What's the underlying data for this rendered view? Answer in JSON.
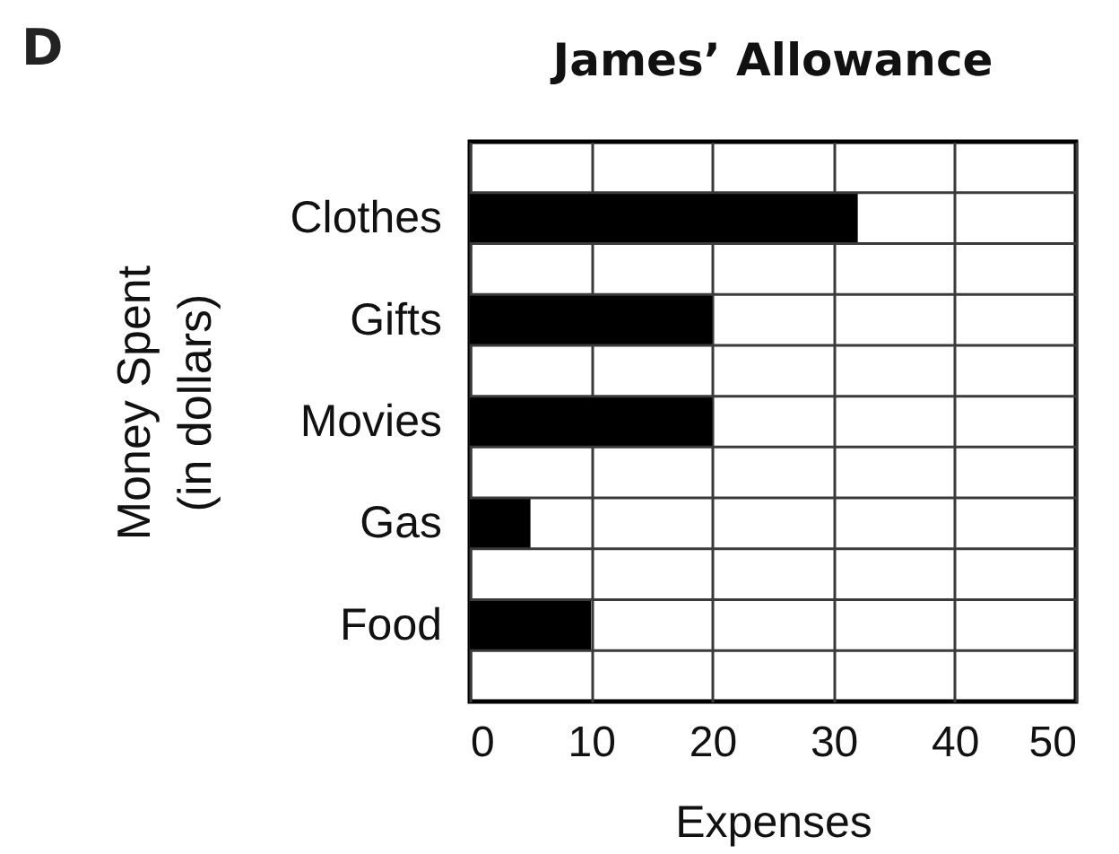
{
  "chart_data": {
    "type": "bar",
    "orientation": "horizontal",
    "title": "James’ Allowance",
    "xlabel": "Expenses",
    "ylabel": "Money Spent\n(in dollars)",
    "categories": [
      "Clothes",
      "Gifts",
      "Movies",
      "Gas",
      "Food"
    ],
    "values": [
      32,
      20,
      20,
      5,
      10
    ],
    "color": "#000000",
    "xlim": [
      0,
      50
    ],
    "xticks": [
      0,
      10,
      20,
      30,
      40,
      50
    ],
    "grid": true,
    "annotations": [
      "D"
    ]
  }
}
